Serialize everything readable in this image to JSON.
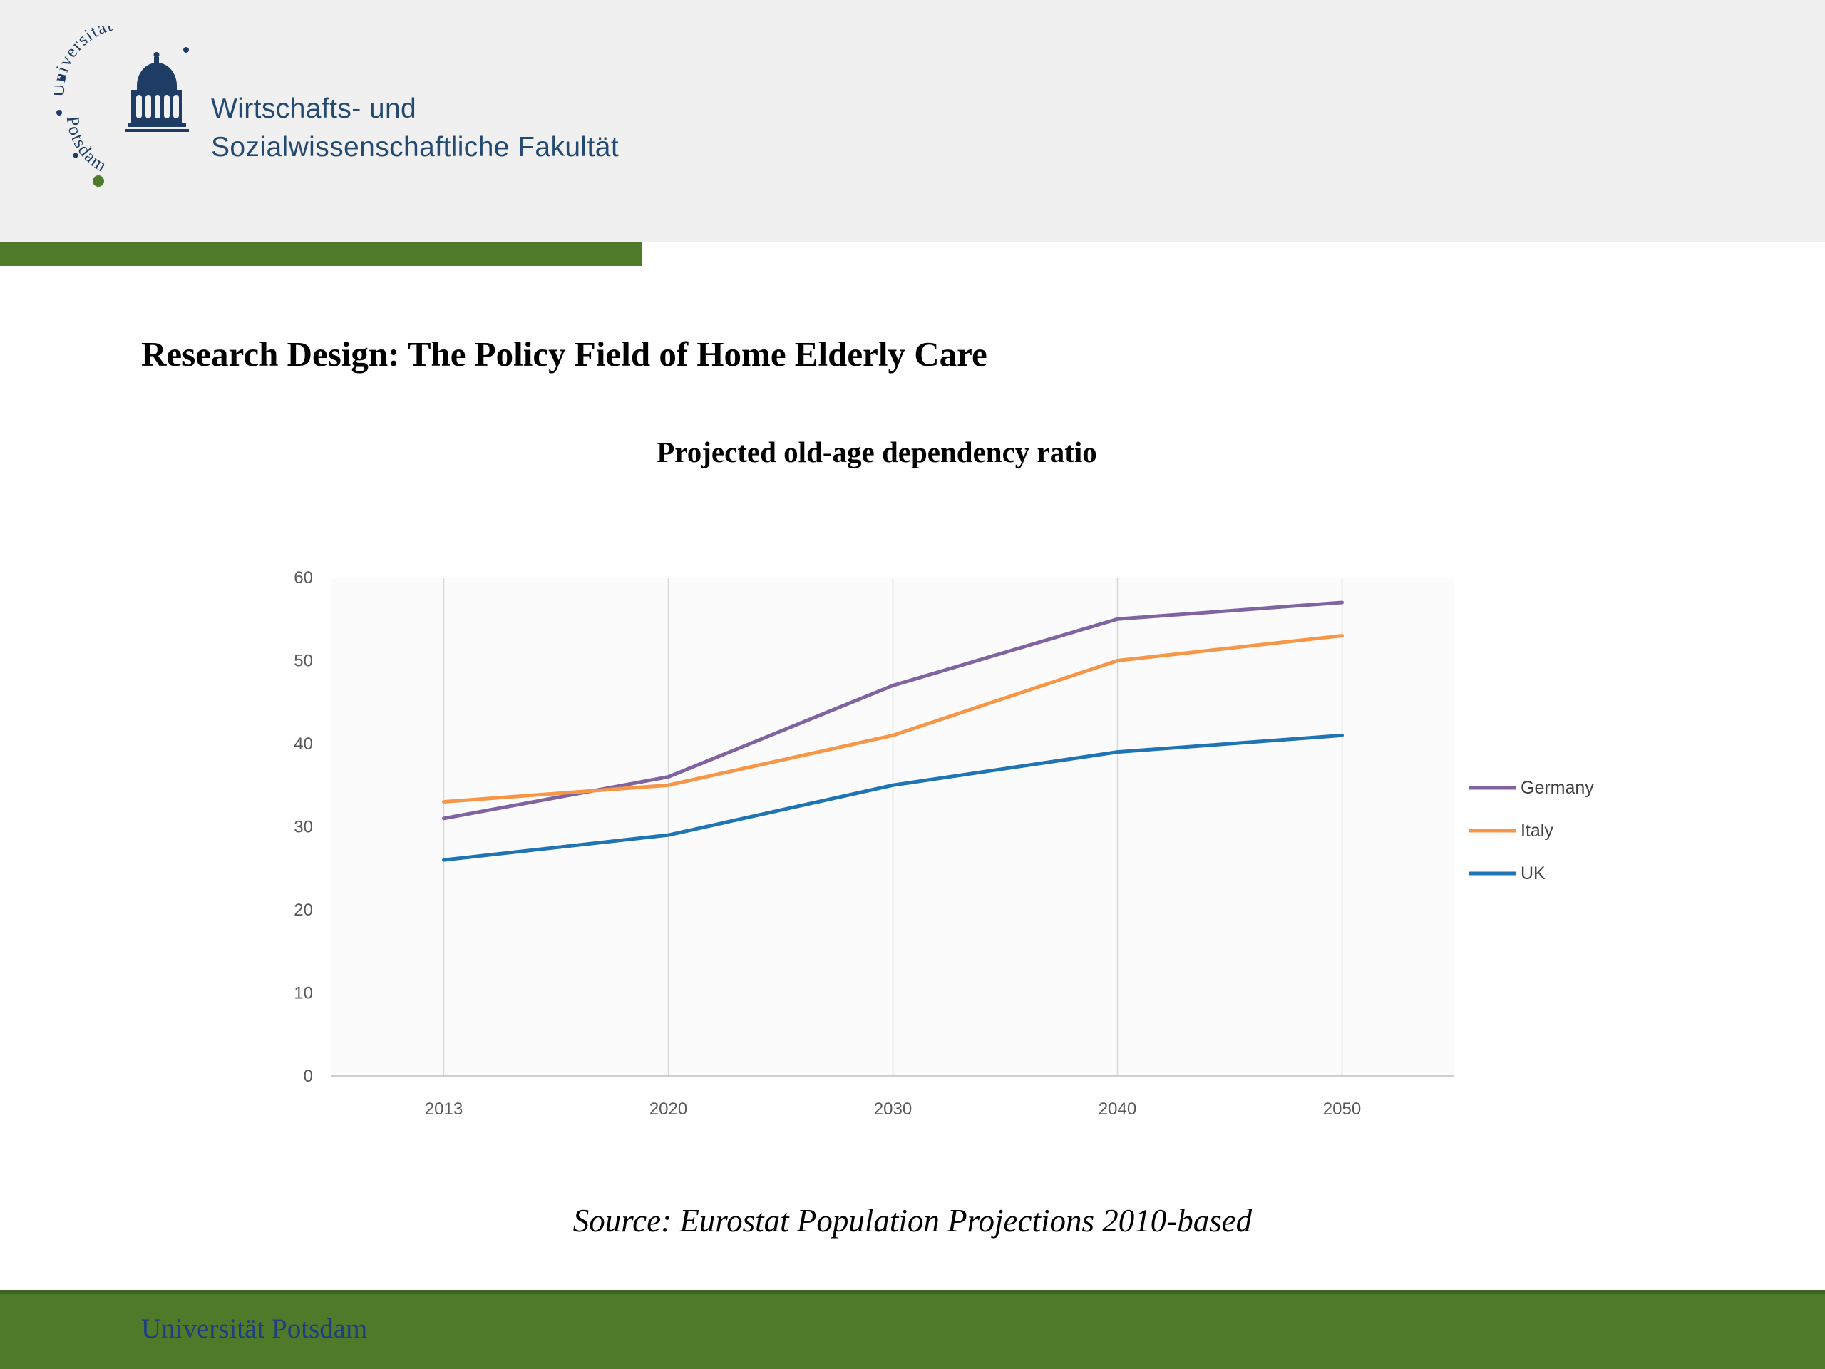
{
  "header": {
    "logo": {
      "arc_top": "Universität",
      "arc_side": "Potsdam"
    },
    "faculty_line1": "Wirtschafts- und",
    "faculty_line2": "Sozialwissenschaftliche Fakultät"
  },
  "slide": {
    "title": "Research Design: The Policy Field of Home Elderly Care",
    "source": "Source: Eurostat Population Projections 2010-based"
  },
  "footer": {
    "text": "Universität Potsdam"
  },
  "colors": {
    "green": "#4e7a29",
    "header_bg": "#f0f0f0",
    "logo_blue": "#1e3c64",
    "faculty_text": "#254a72",
    "footer_text": "#1f3d85",
    "grid": "#d9d9d9",
    "axis_line": "#bfbfbf",
    "tick_text": "#595959",
    "legend_text": "#404040",
    "plot_bg": "#fbfbfb"
  },
  "chart_data": {
    "type": "line",
    "title": "Projected old-age dependency ratio",
    "x": [
      "2013",
      "2020",
      "2030",
      "2040",
      "2050"
    ],
    "series": [
      {
        "name": "Germany",
        "color": "#8064a2",
        "values": [
          31,
          36,
          47,
          55,
          57
        ]
      },
      {
        "name": "Italy",
        "color": "#f79646",
        "values": [
          33,
          35,
          41,
          50,
          53
        ]
      },
      {
        "name": "UK",
        "color": "#1f74b4",
        "values": [
          26,
          29,
          35,
          39,
          41
        ]
      }
    ],
    "ylim": [
      0,
      60
    ],
    "yticks": [
      0,
      10,
      20,
      30,
      40,
      50,
      60
    ],
    "xlabel": "",
    "ylabel": "",
    "grid": "vertical-category-lines",
    "legend_position": "right"
  }
}
